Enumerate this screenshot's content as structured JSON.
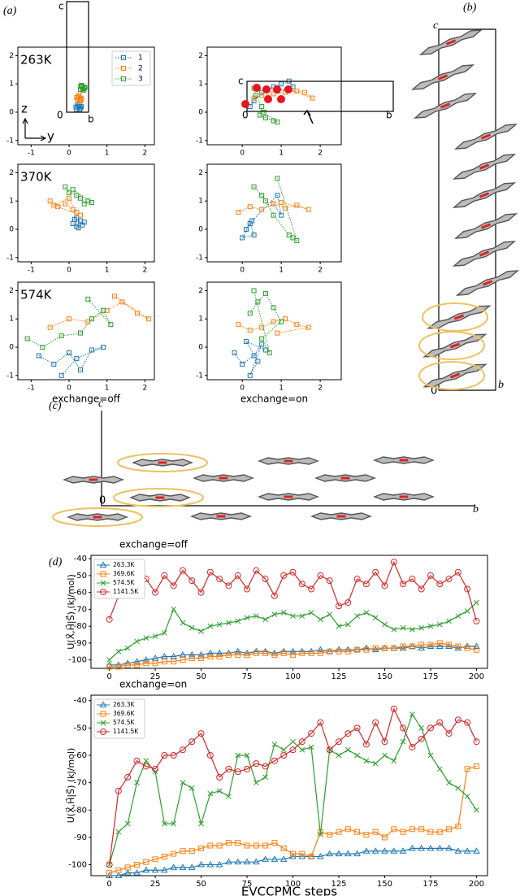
{
  "panels": {
    "a": "(a)",
    "b": "(b)",
    "c": "(c)",
    "d": "(d)"
  },
  "crystal_b": {
    "c": "c",
    "b": "b",
    "origin": "0"
  },
  "crystal_c": {
    "c": "c",
    "b": "b",
    "origin": "0"
  },
  "chart_data": [
    {
      "type": "scatter",
      "label": "263K",
      "xlim": [
        -1.35,
        2.25
      ],
      "ylim": [
        -1.15,
        2.3
      ],
      "xticks": [
        -1,
        0,
        1,
        2
      ],
      "yticks": [
        -1,
        0,
        1,
        2
      ],
      "legend": "upper right",
      "cell": {
        "c": "c",
        "b": "b",
        "origin": "0"
      },
      "axes_arrows": {
        "z": "z",
        "y": "y"
      },
      "series": [
        {
          "name": "1",
          "color": "#1f77b4",
          "x": [
            0.2,
            0.25,
            0.3,
            0.22,
            0.28,
            0.32,
            0.18,
            0.27
          ],
          "values": [
            0.1,
            0.2,
            0.15,
            0.25,
            0.1,
            0.2,
            0.18,
            0.28
          ]
        },
        {
          "name": "2",
          "color": "#ff7f0e",
          "x": [
            0.22,
            0.3,
            0.25,
            0.28,
            0.2,
            0.33,
            0.26,
            0.3
          ],
          "values": [
            0.45,
            0.5,
            0.55,
            0.42,
            0.52,
            0.48,
            0.6,
            0.4
          ]
        },
        {
          "name": "3",
          "color": "#2ca02c",
          "x": [
            0.3,
            0.35,
            0.4,
            0.33,
            0.38,
            0.42,
            0.36,
            0.31
          ],
          "values": [
            0.8,
            0.9,
            0.85,
            0.95,
            0.78,
            0.88,
            0.82,
            0.92
          ]
        }
      ]
    },
    {
      "type": "scatter",
      "xlim": [
        -0.9,
        2.54
      ],
      "ylim": [
        -1.15,
        2.3
      ],
      "xticks": [
        0,
        1,
        2
      ],
      "yticks": [
        -1,
        0,
        1,
        2
      ],
      "cell": {
        "c": "c",
        "b": "b",
        "origin": "0"
      },
      "series": [
        {
          "color": "#1f77b4",
          "x": [
            0.2,
            0.3,
            0.5,
            0.8,
            1.0,
            1.2,
            1.3,
            0.9
          ],
          "values": [
            0.2,
            0.4,
            0.7,
            0.9,
            1.0,
            1.1,
            0.9,
            0.75
          ]
        },
        {
          "color": "#ff7f0e",
          "x": [
            0.3,
            0.5,
            0.8,
            1.1,
            1.4,
            1.6,
            1.8,
            1.2
          ],
          "values": [
            0.5,
            0.6,
            0.65,
            0.7,
            0.75,
            0.7,
            0.5,
            0.8
          ]
        },
        {
          "color": "#2ca02c",
          "x": [
            0.3,
            0.35,
            0.5,
            0.45,
            0.6,
            0.8,
            0.9,
            0.55
          ],
          "values": [
            0.85,
            0.6,
            0.2,
            -0.1,
            -0.2,
            -0.3,
            -0.35,
            0.0
          ]
        }
      ]
    },
    {
      "type": "scatter",
      "label": "370K",
      "xlim": [
        -1.35,
        2.25
      ],
      "ylim": [
        -1.15,
        2.3
      ],
      "xticks": [
        -1,
        0,
        1,
        2
      ],
      "yticks": [
        -1,
        0,
        1,
        2
      ],
      "series": [
        {
          "color": "#1f77b4",
          "x": [
            0.1,
            0.2,
            0.3,
            0.15,
            0.25,
            0.4,
            0.35,
            0.2
          ],
          "values": [
            0.2,
            0.1,
            0.3,
            0.35,
            0.05,
            0.25,
            0.15,
            0.4
          ]
        },
        {
          "color": "#ff7f0e",
          "x": [
            -0.5,
            -0.3,
            -0.1,
            0.1,
            0.2,
            0.0,
            -0.4,
            0.3
          ],
          "values": [
            1.0,
            0.8,
            0.9,
            0.7,
            0.6,
            1.1,
            0.85,
            0.5
          ]
        },
        {
          "color": "#2ca02c",
          "x": [
            -0.1,
            0.0,
            0.2,
            0.3,
            0.4,
            0.5,
            0.6,
            0.1
          ],
          "values": [
            1.5,
            1.3,
            1.2,
            1.1,
            0.9,
            1.0,
            0.95,
            1.4
          ]
        }
      ]
    },
    {
      "type": "scatter",
      "xlim": [
        -0.9,
        2.54
      ],
      "ylim": [
        -1.15,
        2.3
      ],
      "xticks": [
        0,
        1,
        2
      ],
      "yticks": [
        -1,
        0,
        1,
        2
      ],
      "series": [
        {
          "color": "#1f77b4",
          "x": [
            0.1,
            0.2,
            0.3,
            0.0,
            0.25,
            0.9,
            1.0,
            0.8
          ],
          "values": [
            0.0,
            0.2,
            -0.2,
            -0.3,
            0.3,
            1.2,
            0.5,
            0.9
          ]
        },
        {
          "color": "#ff7f0e",
          "x": [
            -0.1,
            0.2,
            0.5,
            0.8,
            1.1,
            1.4,
            1.7,
            1.0
          ],
          "values": [
            0.6,
            0.8,
            0.7,
            0.9,
            0.75,
            0.85,
            0.7,
            0.95
          ]
        },
        {
          "color": "#2ca02c",
          "x": [
            0.3,
            0.5,
            0.6,
            0.8,
            1.2,
            1.3,
            1.4,
            0.9
          ],
          "values": [
            1.5,
            1.2,
            1.0,
            0.5,
            -0.2,
            -0.3,
            -0.4,
            1.8
          ]
        }
      ]
    },
    {
      "type": "scatter",
      "label": "574K",
      "xlabel": "exchange=off",
      "xlim": [
        -1.35,
        2.25
      ],
      "ylim": [
        -1.15,
        2.3
      ],
      "xticks": [
        -1,
        0,
        1,
        2
      ],
      "yticks": [
        -1,
        0,
        1,
        2
      ],
      "series": [
        {
          "color": "#1f77b4",
          "x": [
            -0.8,
            -0.4,
            0.0,
            0.3,
            0.6,
            0.9,
            0.2,
            -0.2
          ],
          "values": [
            -0.3,
            -0.6,
            -0.2,
            -0.8,
            -0.1,
            0.0,
            -0.4,
            -1.0
          ]
        },
        {
          "color": "#ff7f0e",
          "x": [
            -0.5,
            0.0,
            0.5,
            1.0,
            1.4,
            1.8,
            2.1,
            1.2
          ],
          "values": [
            0.7,
            1.0,
            0.9,
            1.3,
            1.6,
            1.2,
            1.0,
            1.8
          ]
        },
        {
          "color": "#2ca02c",
          "x": [
            -1.1,
            -0.7,
            -0.2,
            0.3,
            0.6,
            0.9,
            1.1,
            0.5
          ],
          "values": [
            0.3,
            0.0,
            0.4,
            0.5,
            1.0,
            1.3,
            0.8,
            1.7
          ]
        }
      ]
    },
    {
      "type": "scatter",
      "xlabel": "exchange=on",
      "xlim": [
        -0.9,
        2.54
      ],
      "ylim": [
        -1.15,
        2.3
      ],
      "xticks": [
        0,
        1,
        2
      ],
      "yticks": [
        -1,
        0,
        1,
        2
      ],
      "series": [
        {
          "color": "#1f77b4",
          "x": [
            -0.2,
            0.0,
            0.3,
            0.5,
            0.2,
            0.4,
            0.1,
            0.6
          ],
          "values": [
            -0.2,
            -0.6,
            -0.3,
            0.1,
            -1.0,
            -0.5,
            0.2,
            -0.1
          ]
        },
        {
          "color": "#ff7f0e",
          "x": [
            -0.1,
            0.2,
            0.5,
            0.8,
            1.1,
            1.4,
            1.7,
            0.9
          ],
          "values": [
            0.8,
            0.6,
            0.7,
            0.9,
            1.0,
            0.8,
            0.7,
            0.5
          ]
        },
        {
          "color": "#2ca02c",
          "x": [
            0.2,
            0.4,
            0.6,
            0.8,
            1.0,
            0.5,
            0.7,
            0.3
          ],
          "values": [
            1.2,
            1.6,
            1.9,
            1.4,
            0.9,
            0.3,
            -0.2,
            2.0
          ]
        }
      ]
    },
    {
      "type": "line",
      "title": "exchange=off",
      "ylabel": "U(X⃗,H⃗|S⃗)  (kJ/mol)",
      "legend": "upper left",
      "xlim": [
        -10,
        206
      ],
      "ylim": [
        -105,
        -38
      ],
      "xticks": [
        0,
        25,
        50,
        75,
        100,
        125,
        150,
        175,
        200
      ],
      "yticks": [
        -100,
        -90,
        -80,
        -70,
        -60,
        -50,
        -40
      ],
      "x": [
        0,
        5,
        10,
        15,
        20,
        25,
        30,
        35,
        40,
        45,
        50,
        55,
        60,
        65,
        70,
        75,
        80,
        85,
        90,
        95,
        100,
        105,
        110,
        115,
        120,
        125,
        130,
        135,
        140,
        145,
        150,
        155,
        160,
        165,
        170,
        175,
        180,
        185,
        190,
        195,
        200
      ],
      "series": [
        {
          "name": "263.3K",
          "color": "#1f77b4",
          "marker": "triangle",
          "values": [
            -103,
            -103,
            -102,
            -101,
            -100,
            -99,
            -98,
            -98,
            -97,
            -97,
            -97,
            -96,
            -96,
            -96,
            -95,
            -96,
            -95,
            -95,
            -96,
            -95,
            -95,
            -95,
            -95,
            -94,
            -95,
            -94,
            -94,
            -94,
            -93,
            -94,
            -93,
            -93,
            -93,
            -92,
            -93,
            -92,
            -92,
            -92,
            -93,
            -92,
            -92
          ]
        },
        {
          "name": "369.6K",
          "color": "#ff7f0e",
          "marker": "square",
          "values": [
            -104,
            -104,
            -103,
            -103,
            -102,
            -102,
            -101,
            -101,
            -100,
            -99,
            -99,
            -98,
            -98,
            -97,
            -97,
            -97,
            -96,
            -96,
            -97,
            -96,
            -97,
            -96,
            -96,
            -96,
            -95,
            -95,
            -95,
            -94,
            -94,
            -93,
            -93,
            -93,
            -92,
            -92,
            -91,
            -91,
            -90,
            -91,
            -92,
            -93,
            -94
          ]
        },
        {
          "name": "574.5K",
          "color": "#2ca02c",
          "marker": "x",
          "values": [
            -100,
            -95,
            -93,
            -89,
            -87,
            -86,
            -84,
            -70,
            -78,
            -81,
            -83,
            -80,
            -79,
            -78,
            -77,
            -75,
            -74,
            -76,
            -73,
            -72,
            -74,
            -74,
            -72,
            -76,
            -73,
            -80,
            -79,
            -74,
            -72,
            -75,
            -79,
            -82,
            -81,
            -82,
            -81,
            -80,
            -79,
            -77,
            -74,
            -71,
            -66
          ]
        },
        {
          "name": "1141.5K",
          "color": "#d62728",
          "marker": "circle",
          "values": [
            -76,
            -62,
            -58,
            -45,
            -52,
            -60,
            -50,
            -56,
            -47,
            -53,
            -60,
            -48,
            -52,
            -56,
            -50,
            -58,
            -47,
            -52,
            -62,
            -50,
            -48,
            -55,
            -58,
            -50,
            -53,
            -68,
            -66,
            -52,
            -55,
            -48,
            -56,
            -42,
            -55,
            -52,
            -58,
            -50,
            -55,
            -52,
            -48,
            -58,
            -77
          ]
        }
      ]
    },
    {
      "type": "line",
      "title": "exchange=on",
      "ylabel": "U(X⃗,H⃗|S⃗)  (kJ/mol)",
      "xlabel": "EVCCPMC steps",
      "legend": "upper left",
      "xlim": [
        -10,
        206
      ],
      "ylim": [
        -104,
        -38
      ],
      "xticks": [
        0,
        25,
        50,
        75,
        100,
        125,
        150,
        175,
        200
      ],
      "yticks": [
        -100,
        -90,
        -80,
        -70,
        -60,
        -50,
        -40
      ],
      "x": [
        0,
        5,
        10,
        15,
        20,
        25,
        30,
        35,
        40,
        45,
        50,
        55,
        60,
        65,
        70,
        75,
        80,
        85,
        90,
        95,
        100,
        105,
        110,
        115,
        120,
        125,
        130,
        135,
        140,
        145,
        150,
        155,
        160,
        165,
        170,
        175,
        180,
        185,
        190,
        195,
        200
      ],
      "series": [
        {
          "name": "263.3K",
          "color": "#1f77b4",
          "marker": "triangle",
          "values": [
            -104,
            -104,
            -103,
            -103,
            -102,
            -102,
            -102,
            -101,
            -101,
            -101,
            -100,
            -100,
            -100,
            -99,
            -99,
            -99,
            -99,
            -98,
            -98,
            -98,
            -97,
            -97,
            -97,
            -97,
            -96,
            -96,
            -96,
            -96,
            -95,
            -95,
            -95,
            -95,
            -95,
            -94,
            -94,
            -94,
            -94,
            -94,
            -95,
            -95,
            -95
          ]
        },
        {
          "name": "369.6K",
          "color": "#ff7f0e",
          "marker": "square",
          "values": [
            -103,
            -102,
            -101,
            -100,
            -99,
            -98,
            -97,
            -96,
            -95,
            -95,
            -94,
            -93,
            -93,
            -92,
            -92,
            -93,
            -93,
            -93,
            -92,
            -94,
            -96,
            -96,
            -97,
            -88,
            -89,
            -88,
            -87,
            -88,
            -89,
            -88,
            -90,
            -87,
            -88,
            -87,
            -87,
            -88,
            -88,
            -87,
            -86,
            -65,
            -64
          ]
        },
        {
          "name": "574.5K",
          "color": "#2ca02c",
          "marker": "x",
          "values": [
            -100,
            -88,
            -85,
            -70,
            -62,
            -66,
            -85,
            -85,
            -70,
            -72,
            -85,
            -74,
            -73,
            -75,
            -60,
            -60,
            -70,
            -68,
            -56,
            -58,
            -55,
            -58,
            -57,
            -89,
            -58,
            -60,
            -58,
            -60,
            -62,
            -63,
            -60,
            -62,
            -55,
            -45,
            -50,
            -60,
            -65,
            -70,
            -72,
            -75,
            -80
          ]
        },
        {
          "name": "1141.5K",
          "color": "#d62728",
          "marker": "circle",
          "values": [
            -100,
            -73,
            -68,
            -62,
            -64,
            -65,
            -60,
            -60,
            -58,
            -55,
            -52,
            -60,
            -68,
            -65,
            -66,
            -65,
            -63,
            -64,
            -62,
            -60,
            -58,
            -55,
            -52,
            -48,
            -58,
            -55,
            -52,
            -50,
            -56,
            -48,
            -55,
            -43,
            -50,
            -57,
            -54,
            -50,
            -48,
            -52,
            -47,
            -48,
            -55
          ]
        }
      ]
    }
  ]
}
